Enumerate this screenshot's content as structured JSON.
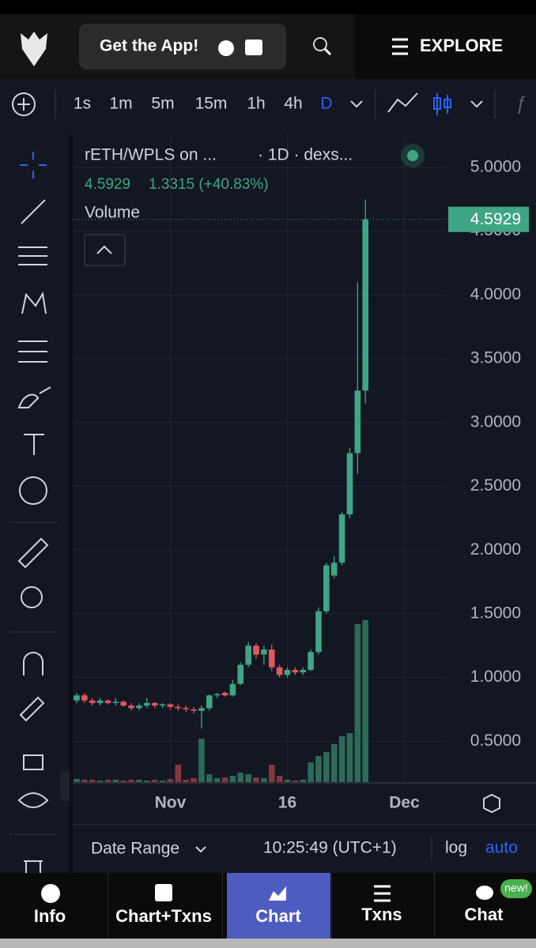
{
  "header": {
    "app_button": "Get the App!",
    "explore": "EXPLORE"
  },
  "toolbar": {
    "intervals": [
      "1s",
      "1m",
      "5m",
      "15m",
      "1h",
      "4h",
      "D"
    ]
  },
  "chart_data": {
    "type": "candlestick",
    "title": "rETH/WPLS on ...",
    "subtitle": "· 1D · dexs...",
    "change": "1.3315 (+40.83%)",
    "volume_label": "Volume",
    "up_color": "#3fa584",
    "down_color": "#e0585e",
    "volume_up_color": "#2c6a59",
    "volume_down_color": "#86363f",
    "categories": [
      null,
      null,
      null,
      null,
      null,
      null,
      null,
      null,
      null,
      null,
      null,
      null,
      "Nov",
      null,
      null,
      null,
      null,
      null,
      null,
      null,
      null,
      null,
      null,
      null,
      null,
      null,
      null,
      "16",
      null,
      null,
      null,
      null,
      null,
      null,
      null,
      null,
      null,
      null,
      null,
      null,
      null,
      null,
      "Dec"
    ],
    "open": [
      0.82,
      0.86,
      0.82,
      0.8,
      0.82,
      0.8,
      0.81,
      0.78,
      0.76,
      0.78,
      0.8,
      0.78,
      0.79,
      0.77,
      0.76,
      0.75,
      0.74,
      0.76,
      0.86,
      0.88,
      0.86,
      0.95,
      1.1,
      1.25,
      1.18,
      1.22,
      1.08,
      1.02,
      1.06,
      1.04,
      1.06,
      1.2,
      1.52,
      1.8,
      1.9,
      2.28,
      2.76,
      3.25,
      null,
      null,
      null,
      null,
      null
    ],
    "high": [
      0.88,
      0.88,
      0.84,
      0.84,
      0.83,
      0.84,
      0.82,
      0.8,
      0.8,
      0.84,
      0.81,
      0.8,
      0.8,
      0.79,
      0.78,
      0.77,
      0.78,
      0.87,
      0.88,
      0.89,
      0.98,
      1.12,
      1.28,
      1.27,
      1.25,
      1.26,
      1.1,
      1.08,
      1.08,
      1.08,
      1.22,
      1.55,
      1.9,
      1.95,
      2.3,
      2.8,
      4.1,
      4.75,
      null,
      null,
      null,
      null,
      null
    ],
    "low": [
      0.8,
      0.8,
      0.78,
      0.78,
      0.79,
      0.78,
      0.77,
      0.74,
      0.74,
      0.76,
      0.76,
      0.76,
      0.75,
      0.74,
      0.73,
      0.72,
      0.6,
      0.74,
      0.84,
      0.85,
      0.85,
      0.94,
      1.08,
      1.15,
      1.1,
      1.05,
      1.0,
      1.0,
      1.02,
      1.02,
      1.05,
      1.18,
      1.5,
      1.78,
      1.88,
      2.25,
      2.6,
      3.15,
      null,
      null,
      null,
      null,
      null
    ],
    "close": [
      0.86,
      0.82,
      0.8,
      0.82,
      0.8,
      0.81,
      0.78,
      0.76,
      0.78,
      0.8,
      0.78,
      0.79,
      0.77,
      0.76,
      0.75,
      0.74,
      0.76,
      0.86,
      0.87,
      0.86,
      0.95,
      1.1,
      1.25,
      1.18,
      1.22,
      1.08,
      1.02,
      1.06,
      1.04,
      1.06,
      1.2,
      1.52,
      1.88,
      1.9,
      2.28,
      2.76,
      3.25,
      4.5929,
      null,
      null,
      null,
      null,
      null
    ],
    "volume": [
      4,
      3,
      3,
      2,
      3,
      3,
      2,
      3,
      3,
      2,
      3,
      2,
      4,
      22,
      3,
      5,
      55,
      10,
      5,
      6,
      8,
      12,
      10,
      6,
      5,
      22,
      8,
      3,
      2,
      3,
      25,
      33,
      38,
      48,
      58,
      62,
      200,
      205,
      null,
      null,
      null,
      null,
      null
    ],
    "ylim": [
      0.18,
      5.26
    ],
    "yticks": [
      {
        "value": 0.5,
        "label": "0.5000"
      },
      {
        "value": 1,
        "label": "1.0000"
      },
      {
        "value": 1.5,
        "label": "1.5000"
      },
      {
        "value": 2,
        "label": "2.0000"
      },
      {
        "value": 2.5,
        "label": "2.5000"
      },
      {
        "value": 3,
        "label": "3.0000"
      },
      {
        "value": 3.5,
        "label": "3.5000"
      },
      {
        "value": 4,
        "label": "4.0000"
      },
      {
        "value": 4.5,
        "label": "4.5000"
      },
      {
        "value": 5,
        "label": "5.0000"
      }
    ],
    "grid": true
  },
  "footer": {
    "date_range": "Date Range",
    "time": "10:25:49 (UTC+1)",
    "log": "log",
    "auto": "auto"
  },
  "nav": {
    "tabs": [
      "Info",
      "Chart+Txns",
      "Chart",
      "Txns",
      "Chat"
    ],
    "badge": "new!"
  }
}
